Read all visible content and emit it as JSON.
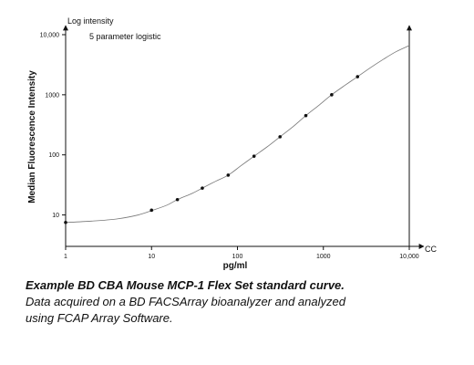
{
  "chart_data": {
    "type": "scatter",
    "title": "",
    "xlabel": "pg/ml",
    "ylabel": "Median Fluorescence Intensity",
    "x_scale": "log",
    "y_scale": "log",
    "xlim": [
      1,
      10000
    ],
    "ylim": [
      3,
      10000
    ],
    "x_ticks": [
      {
        "value": 1,
        "label": "1"
      },
      {
        "value": 10,
        "label": "10"
      },
      {
        "value": 100,
        "label": "100"
      },
      {
        "value": 1000,
        "label": "1000"
      },
      {
        "value": 10000,
        "label": "10,000"
      }
    ],
    "y_ticks": [
      {
        "value": 10,
        "label": "10"
      },
      {
        "value": 100,
        "label": "100"
      },
      {
        "value": 1000,
        "label": "1000"
      },
      {
        "value": 10000,
        "label": "10,000"
      }
    ],
    "y_axis_annotation": "Log intensity",
    "x_axis_annotation": "CC",
    "annotations": [
      "5 parameter logistic"
    ],
    "grid": false,
    "series": [
      {
        "points": [
          {
            "x": 1,
            "y": 7.5
          },
          {
            "x": 10,
            "y": 12
          },
          {
            "x": 20,
            "y": 18
          },
          {
            "x": 39,
            "y": 28
          },
          {
            "x": 78,
            "y": 46
          },
          {
            "x": 156,
            "y": 95
          },
          {
            "x": 313,
            "y": 200
          },
          {
            "x": 625,
            "y": 450
          },
          {
            "x": 1250,
            "y": 1000
          },
          {
            "x": 2500,
            "y": 2000
          }
        ]
      }
    ],
    "fit_curve": [
      {
        "x": 1,
        "y": 7.5
      },
      {
        "x": 2,
        "y": 7.9
      },
      {
        "x": 4,
        "y": 8.6
      },
      {
        "x": 7,
        "y": 10
      },
      {
        "x": 10,
        "y": 11.8
      },
      {
        "x": 15,
        "y": 14.5
      },
      {
        "x": 20,
        "y": 18
      },
      {
        "x": 30,
        "y": 23
      },
      {
        "x": 39,
        "y": 28
      },
      {
        "x": 55,
        "y": 36
      },
      {
        "x": 78,
        "y": 46
      },
      {
        "x": 110,
        "y": 66
      },
      {
        "x": 156,
        "y": 95
      },
      {
        "x": 220,
        "y": 135
      },
      {
        "x": 313,
        "y": 200
      },
      {
        "x": 450,
        "y": 300
      },
      {
        "x": 625,
        "y": 450
      },
      {
        "x": 900,
        "y": 680
      },
      {
        "x": 1250,
        "y": 1000
      },
      {
        "x": 1800,
        "y": 1450
      },
      {
        "x": 2500,
        "y": 2000
      },
      {
        "x": 3500,
        "y": 2800
      },
      {
        "x": 5000,
        "y": 3900
      },
      {
        "x": 7000,
        "y": 5200
      },
      {
        "x": 10000,
        "y": 6600
      }
    ],
    "colors": {
      "axis": "#111111",
      "curve": "#777777",
      "points": "#111111"
    }
  },
  "caption": {
    "title": "Example BD CBA Mouse MCP-1 Flex Set standard curve.",
    "line1": "Data acquired on a BD FACSArray bioanalyzer and analyzed",
    "line2": "using FCAP Array Software."
  }
}
